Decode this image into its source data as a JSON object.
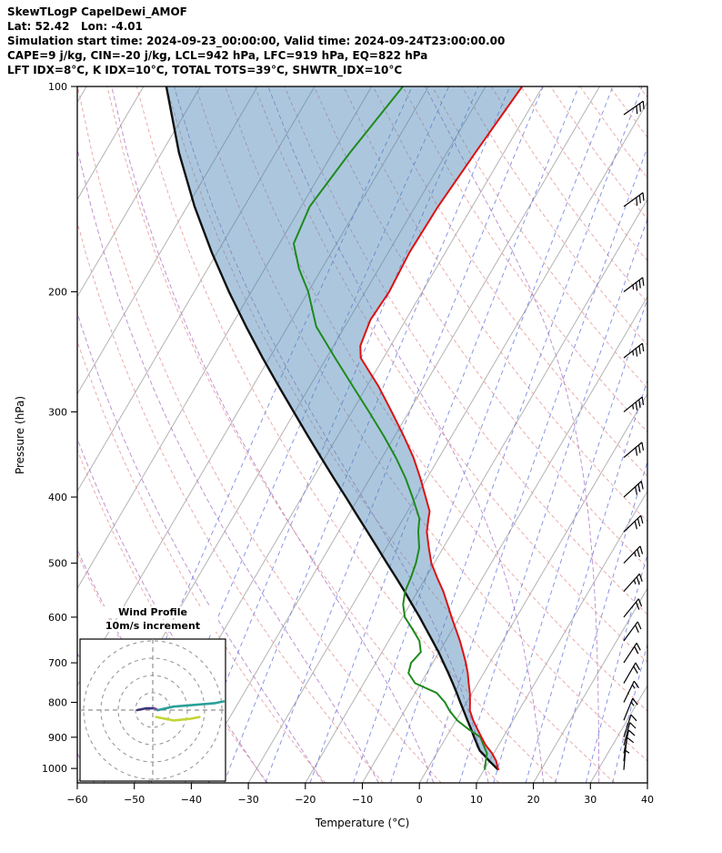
{
  "header": {
    "title": "SkewTLogP CapelDewi_AMOF",
    "location_line": "Lat: 52.42   Lon: -4.01",
    "time_line": "Simulation start time: 2024-09-23_00:00:00, Valid time: 2024-09-24T23:00:00.00",
    "indices_line1": "CAPE=9 j/kg, CIN=-20 j/kg, LCL=942 hPa, LFC=919 hPa, EQ=822 hPa",
    "indices_line2": "LFT IDX=8°C, K IDX=10°C, TOTAL TOTS=39°C, SHWTR_IDX=10°C"
  },
  "axes": {
    "y_label": "Pressure (hPa)",
    "x_label": "Temperature (°C)",
    "pressure_ticks": [
      100,
      200,
      300,
      400,
      500,
      600,
      700,
      800,
      900,
      1000
    ],
    "temperature_ticks": [
      -60,
      -50,
      -40,
      -30,
      -20,
      -10,
      0,
      10,
      20,
      30,
      40
    ],
    "pressure_range": [
      1050,
      100
    ],
    "temperature_range": [
      -60,
      40
    ]
  },
  "inset": {
    "title": "Wind Profile",
    "subtitle": "10m/s increment",
    "ring_increment_ms": 10,
    "rings": [
      10,
      20,
      30,
      40
    ]
  },
  "indices": {
    "cape_jkg": 9,
    "cin_jkg": -20,
    "lcl_hpa": 942,
    "lfc_hpa": 919,
    "eq_hpa": 822,
    "lifted_index_c": 8,
    "k_index_c": 10,
    "total_totals_c": 39,
    "showalter_index_c": 10
  },
  "colors": {
    "temperature": "#dd1111",
    "dewpoint": "#1e8a1e",
    "parcel": "#111111",
    "cape_shade": "#4682b4",
    "isotherm": "#b3b3b3",
    "dry_adiabat": "#e59999",
    "moist_adiabat": "#aa77c2",
    "mixing_ratio": "#5f6fd8",
    "barb": "#000000",
    "inset_grid": "#909090"
  },
  "chart_data": {
    "type": "line",
    "variant": "skew-t log-p sounding",
    "skew_ratio": 0.587,
    "profiles": {
      "temperature_c": [
        [
          1005,
          12.6
        ],
        [
          1000,
          12.3
        ],
        [
          975,
          11.2
        ],
        [
          950,
          9.7
        ],
        [
          925,
          7.8
        ],
        [
          900,
          6.2
        ],
        [
          875,
          4.6
        ],
        [
          850,
          3.0
        ],
        [
          822,
          1.4
        ],
        [
          800,
          0.6
        ],
        [
          775,
          -0.4
        ],
        [
          750,
          -1.6
        ],
        [
          725,
          -2.8
        ],
        [
          700,
          -4.2
        ],
        [
          675,
          -5.8
        ],
        [
          650,
          -7.5
        ],
        [
          625,
          -9.4
        ],
        [
          600,
          -11.4
        ],
        [
          575,
          -13.4
        ],
        [
          550,
          -15.5
        ],
        [
          525,
          -18.0
        ],
        [
          500,
          -20.5
        ],
        [
          475,
          -22.5
        ],
        [
          450,
          -24.5
        ],
        [
          430,
          -25.6
        ],
        [
          420,
          -26.1
        ],
        [
          400,
          -28.3
        ],
        [
          375,
          -31.2
        ],
        [
          350,
          -34.5
        ],
        [
          325,
          -38.5
        ],
        [
          300,
          -43.0
        ],
        [
          275,
          -48.0
        ],
        [
          250,
          -54.0
        ],
        [
          240,
          -55.3
        ],
        [
          220,
          -56.2
        ],
        [
          200,
          -55.8
        ],
        [
          175,
          -56.3
        ],
        [
          150,
          -56.0
        ],
        [
          125,
          -55.0
        ],
        [
          100,
          -53.6
        ]
      ],
      "dewpoint_c": [
        [
          1005,
          10.2
        ],
        [
          1000,
          10.0
        ],
        [
          975,
          9.4
        ],
        [
          950,
          8.8
        ],
        [
          925,
          7.4
        ],
        [
          900,
          6.0
        ],
        [
          875,
          3.0
        ],
        [
          850,
          0.2
        ],
        [
          822,
          -2.2
        ],
        [
          800,
          -3.8
        ],
        [
          775,
          -6.2
        ],
        [
          750,
          -11.0
        ],
        [
          725,
          -13.2
        ],
        [
          700,
          -13.8
        ],
        [
          675,
          -13.2
        ],
        [
          650,
          -14.6
        ],
        [
          625,
          -17.0
        ],
        [
          600,
          -19.6
        ],
        [
          575,
          -21.2
        ],
        [
          550,
          -22.2
        ],
        [
          525,
          -22.6
        ],
        [
          500,
          -23.2
        ],
        [
          475,
          -24.2
        ],
        [
          450,
          -26.0
        ],
        [
          430,
          -27.2
        ],
        [
          400,
          -30.6
        ],
        [
          375,
          -33.8
        ],
        [
          350,
          -37.6
        ],
        [
          325,
          -42.0
        ],
        [
          300,
          -47.0
        ],
        [
          275,
          -52.5
        ],
        [
          250,
          -58.5
        ],
        [
          225,
          -65.0
        ],
        [
          200,
          -70.0
        ],
        [
          185,
          -74.0
        ],
        [
          170,
          -77.5
        ],
        [
          150,
          -78.5
        ],
        [
          125,
          -77.0
        ],
        [
          100,
          -74.5
        ]
      ],
      "parcel_c": [
        [
          1005,
          12.5
        ],
        [
          1000,
          12.1
        ],
        [
          975,
          10.0
        ],
        [
          950,
          8.0
        ],
        [
          942,
          7.3
        ],
        [
          925,
          6.3
        ],
        [
          919,
          6.0
        ],
        [
          900,
          4.9
        ],
        [
          875,
          3.5
        ],
        [
          850,
          2.0
        ],
        [
          822,
          0.3
        ],
        [
          800,
          -1.1
        ],
        [
          775,
          -2.7
        ],
        [
          750,
          -4.4
        ],
        [
          725,
          -6.2
        ],
        [
          700,
          -8.1
        ],
        [
          675,
          -10.1
        ],
        [
          650,
          -12.3
        ],
        [
          625,
          -14.6
        ],
        [
          600,
          -17.0
        ],
        [
          575,
          -19.6
        ],
        [
          550,
          -22.3
        ],
        [
          525,
          -25.2
        ],
        [
          500,
          -28.3
        ],
        [
          475,
          -31.5
        ],
        [
          450,
          -34.9
        ],
        [
          425,
          -38.5
        ],
        [
          400,
          -42.3
        ],
        [
          375,
          -46.4
        ],
        [
          350,
          -50.7
        ],
        [
          325,
          -55.3
        ],
        [
          300,
          -60.2
        ],
        [
          275,
          -65.5
        ],
        [
          250,
          -71.2
        ],
        [
          225,
          -77.3
        ],
        [
          200,
          -83.9
        ],
        [
          175,
          -91.0
        ],
        [
          150,
          -98.7
        ],
        [
          125,
          -107.0
        ],
        [
          100,
          -116.0
        ]
      ]
    },
    "winds_p_dir_kt": [
      [
        1005,
        185,
        5
      ],
      [
        975,
        188,
        8
      ],
      [
        950,
        192,
        10
      ],
      [
        925,
        195,
        10
      ],
      [
        900,
        198,
        12
      ],
      [
        850,
        202,
        15
      ],
      [
        800,
        206,
        15
      ],
      [
        750,
        210,
        18
      ],
      [
        700,
        213,
        20
      ],
      [
        650,
        216,
        20
      ],
      [
        600,
        219,
        22
      ],
      [
        550,
        222,
        25
      ],
      [
        500,
        224,
        25
      ],
      [
        450,
        226,
        28
      ],
      [
        400,
        228,
        30
      ],
      [
        350,
        230,
        32
      ],
      [
        300,
        231,
        35
      ],
      [
        250,
        232,
        35
      ],
      [
        200,
        233,
        35
      ],
      [
        150,
        234,
        30
      ],
      [
        110,
        235,
        28
      ]
    ],
    "hodograph_segments": [
      {
        "color": "#3b3578",
        "points": [
          [
            -9,
            0
          ],
          [
            -4,
            1
          ],
          [
            1,
            1
          ]
        ]
      },
      {
        "color": "#7b52a8",
        "points": [
          [
            1,
            1
          ],
          [
            3,
            0
          ]
        ]
      },
      {
        "color": "#2aa198",
        "points": [
          [
            3,
            0
          ],
          [
            12,
            2
          ],
          [
            24,
            3
          ],
          [
            36,
            4
          ],
          [
            41,
            5
          ]
        ]
      },
      {
        "color": "#c4d435",
        "points": [
          [
            2,
            -4
          ],
          [
            12,
            -6
          ],
          [
            22,
            -5
          ],
          [
            27,
            -4
          ]
        ]
      }
    ],
    "background": {
      "isotherm_step_c": 10,
      "dry_adiabats_theta_c": {
        "min": -60,
        "max": 200,
        "step": 10
      },
      "moist_adiabats_thetaw_c": [
        -60,
        -50,
        -40,
        -30,
        -20,
        -10,
        0,
        10,
        20,
        30,
        40
      ],
      "mixing_ratios_gkg": [
        0.02,
        0.05,
        0.1,
        0.2,
        0.4,
        0.8,
        1.5,
        2.5,
        4,
        6,
        9,
        13,
        18,
        25,
        33
      ]
    }
  }
}
